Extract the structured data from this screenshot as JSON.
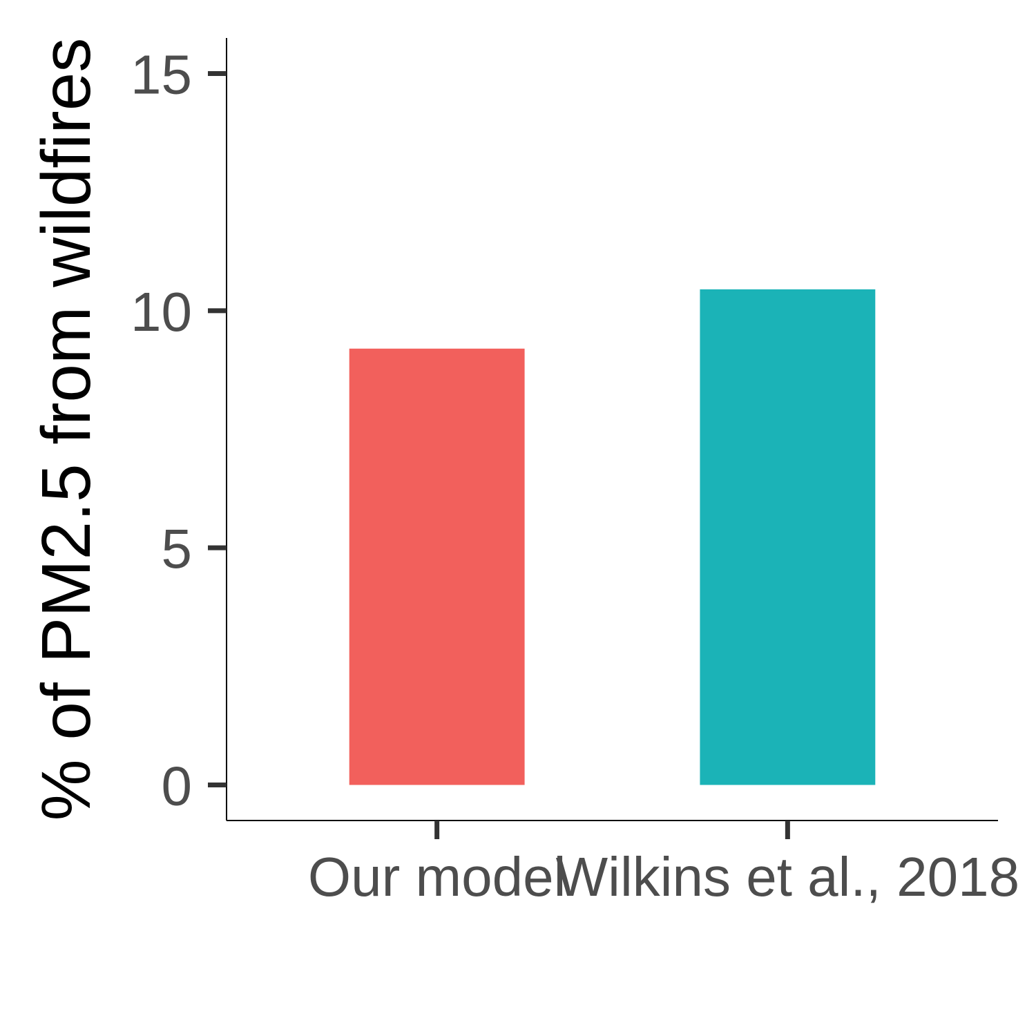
{
  "chart_data": {
    "type": "bar",
    "title": "",
    "xlabel": "",
    "ylabel": "% of PM2.5 from wildfires",
    "categories": [
      "Our model",
      "Wilkins et al., 2018"
    ],
    "values": [
      9.2,
      10.45
    ],
    "colors": [
      "#F2605C",
      "#1BB3B7"
    ],
    "ylim": [
      -0.75,
      15.75
    ],
    "yticks": [
      0,
      5,
      10,
      15
    ],
    "ytick_labels": [
      "0",
      "5",
      "10",
      "15"
    ],
    "grid": false,
    "legend": "none"
  }
}
